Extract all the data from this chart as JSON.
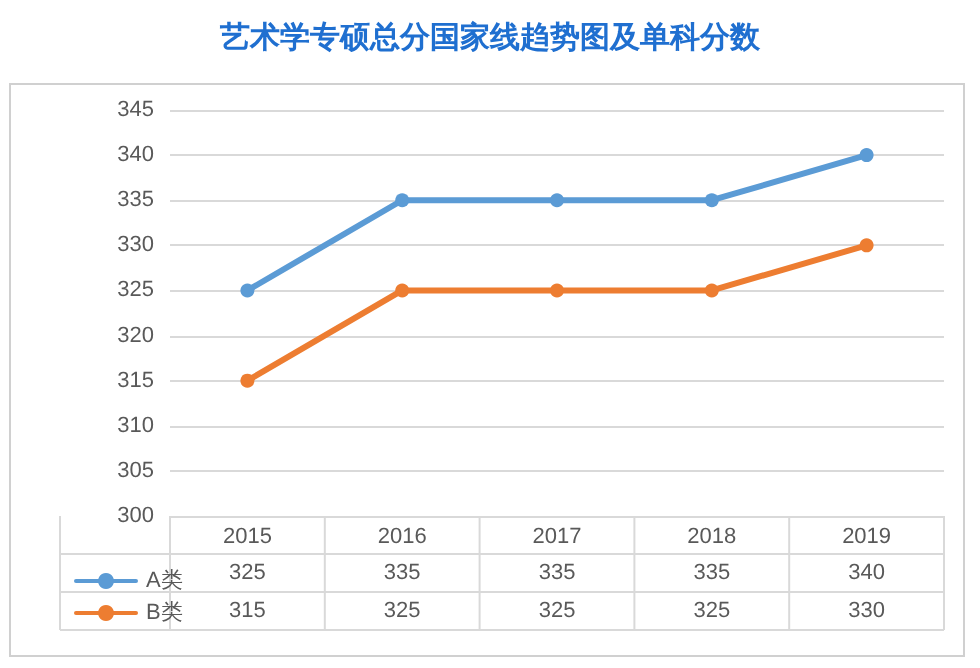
{
  "chart_data": {
    "type": "line",
    "title": "艺术学专硕总分国家线趋势图及单科分数",
    "categories": [
      "2015",
      "2016",
      "2017",
      "2018",
      "2019"
    ],
    "series": [
      {
        "name": "A类",
        "color": "#5b9bd5",
        "values": [
          325,
          335,
          335,
          335,
          340
        ]
      },
      {
        "name": "B类",
        "color": "#ed7d31",
        "values": [
          315,
          325,
          325,
          325,
          330
        ]
      }
    ],
    "ylim": [
      300,
      345
    ],
    "yticks": [
      300,
      305,
      310,
      315,
      320,
      325,
      330,
      335,
      340,
      345
    ],
    "grid": "y",
    "marker": "circle",
    "line_style": "solid",
    "legend": "bottom left",
    "data_labels": true
  }
}
